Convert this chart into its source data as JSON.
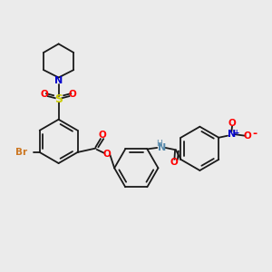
{
  "background_color": "#ebebeb",
  "figsize": [
    3.0,
    3.0
  ],
  "dpi": 100,
  "bond_color": "#1a1a1a",
  "bond_lw": 1.3,
  "dbo": 0.012,
  "ring_r": 0.082,
  "pip_r": 0.065,
  "colors": {
    "C": "#1a1a1a",
    "N": "#0000cc",
    "O": "#ff0000",
    "S": "#cccc00",
    "Br": "#cc7722",
    "NH": "#5588aa"
  }
}
